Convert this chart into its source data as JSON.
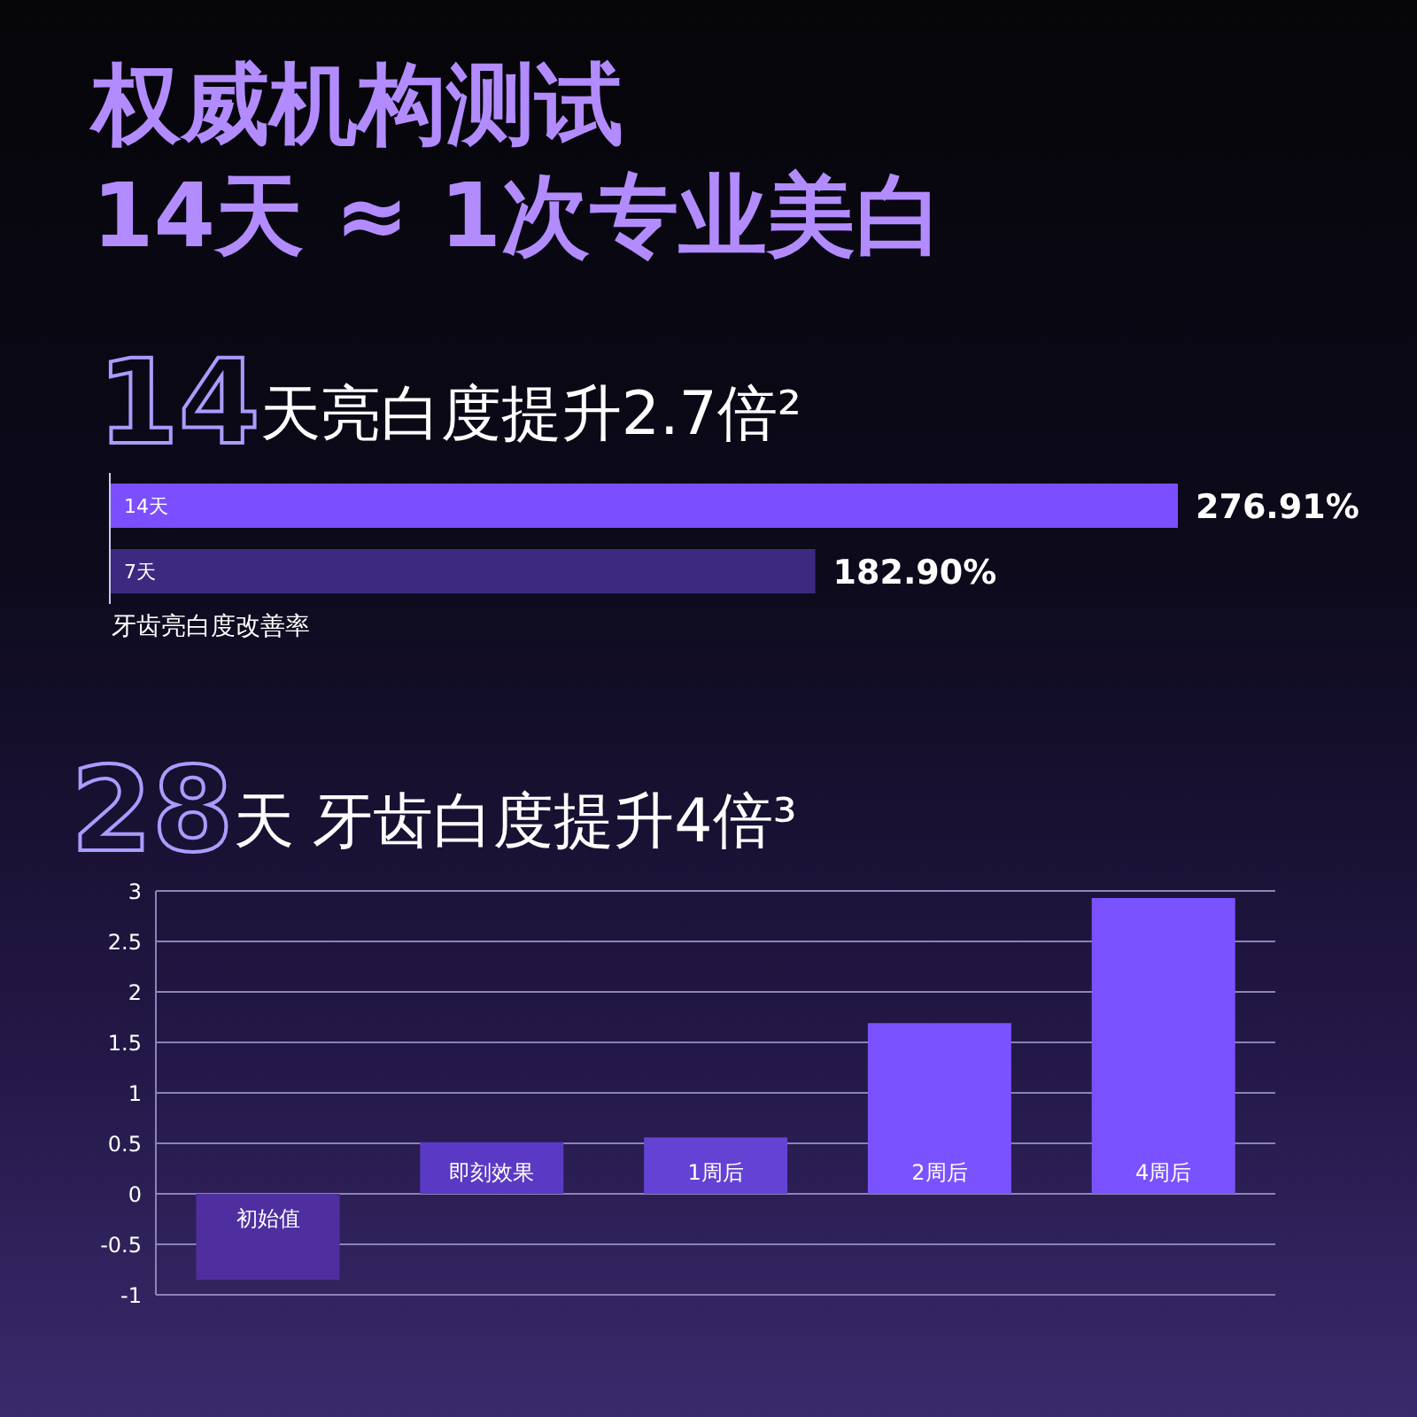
{
  "chart_data": [
    {
      "type": "other",
      "title": "权威机构测试",
      "subtitle": "14天 ≈ 1次专业美白"
    },
    {
      "type": "bar",
      "orientation": "horizontal",
      "title": "14天亮白度提升2.7倍²",
      "xlabel": "牙齿亮白度改善率",
      "categories": [
        "14天",
        "7天"
      ],
      "values": [
        276.91,
        182.9
      ],
      "colors": [
        "#7b4fff",
        "#3d2a80"
      ],
      "value_labels": [
        "276.91%",
        "182.90%"
      ]
    },
    {
      "type": "bar",
      "title": "28天 牙齿白度提升4倍³",
      "categories": [
        "初始值",
        "即刻效果",
        "1周后",
        "2周后",
        "4周后"
      ],
      "values": [
        -0.85,
        0.51,
        0.56,
        1.69,
        2.93
      ],
      "colors": [
        "#4f2fa0",
        "#5a3ac4",
        "#6442d4",
        "#7b52ff",
        "#7b52ff"
      ],
      "ylim": [
        -1,
        3
      ],
      "yticks": [
        -1,
        -0.5,
        0,
        0.5,
        1,
        1.5,
        2,
        2.5,
        3
      ],
      "grid": "y"
    }
  ]
}
